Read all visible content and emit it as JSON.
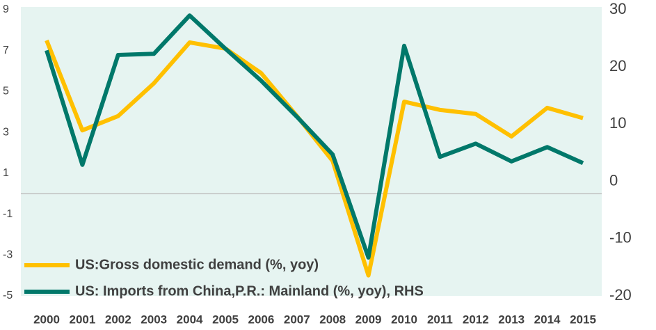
{
  "chart_data": {
    "type": "line",
    "categories": [
      "2000",
      "2001",
      "2002",
      "2003",
      "2004",
      "2005",
      "2006",
      "2007",
      "2008",
      "2009",
      "2010",
      "2011",
      "2012",
      "2013",
      "2014",
      "2015"
    ],
    "series": [
      {
        "name": "US:Gross domestic demand (%, yoy)",
        "color": "#FFC000",
        "values": [
          7.5,
          3.1,
          3.8,
          5.4,
          7.4,
          7.1,
          5.9,
          3.8,
          1.6,
          -4.0,
          4.5,
          4.1,
          3.9,
          2.8,
          4.2,
          3.7
        ]
      },
      {
        "name": "US: Imports from China,P.R.: Mainland (%, yoy), RHS",
        "color": "#00786A",
        "axis": "y2",
        "values": [
          22.9,
          2.9,
          22.1,
          22.3,
          29.0,
          23.2,
          17.6,
          11.3,
          4.7,
          -13.3,
          23.7,
          4.3,
          6.6,
          3.5,
          6.0,
          3.2
        ]
      }
    ],
    "ylim": [
      -5,
      9
    ],
    "yticks": [
      9,
      7,
      5,
      3,
      1,
      -1,
      -3,
      -5
    ],
    "y2lim": [
      -20,
      30
    ],
    "y2ticks": [
      30,
      20,
      10,
      0,
      -10,
      -20
    ],
    "legend": "lower left"
  }
}
